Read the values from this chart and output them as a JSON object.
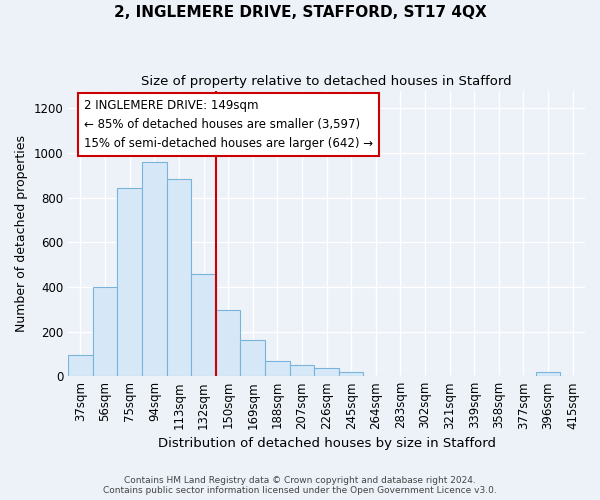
{
  "title": "2, INGLEMERE DRIVE, STAFFORD, ST17 4QX",
  "subtitle": "Size of property relative to detached houses in Stafford",
  "xlabel": "Distribution of detached houses by size in Stafford",
  "ylabel": "Number of detached properties",
  "categories": [
    "37sqm",
    "56sqm",
    "75sqm",
    "94sqm",
    "113sqm",
    "132sqm",
    "150sqm",
    "169sqm",
    "188sqm",
    "207sqm",
    "226sqm",
    "245sqm",
    "264sqm",
    "283sqm",
    "302sqm",
    "321sqm",
    "339sqm",
    "358sqm",
    "377sqm",
    "396sqm",
    "415sqm"
  ],
  "values": [
    95,
    400,
    845,
    960,
    885,
    460,
    295,
    160,
    70,
    52,
    35,
    20,
    0,
    0,
    0,
    0,
    0,
    0,
    0,
    18,
    0
  ],
  "bar_color": "#d6e8f7",
  "bar_edge_color": "#7ab3d9",
  "vline_position": 6,
  "vline_color": "#cc0000",
  "annotation_line1": "2 INGLEMERE DRIVE: 149sqm",
  "annotation_line2": "← 85% of detached houses are smaller (3,597)",
  "annotation_line3": "15% of semi-detached houses are larger (642) →",
  "footer": "Contains HM Land Registry data © Crown copyright and database right 2024.\nContains public sector information licensed under the Open Government Licence v3.0.",
  "ylim": [
    0,
    1280
  ],
  "yticks": [
    0,
    200,
    400,
    600,
    800,
    1000,
    1200
  ],
  "fig_bg_color": "#edf2f9",
  "plot_bg_color": "#edf2f9",
  "grid_color": "#ffffff",
  "title_fontsize": 11,
  "subtitle_fontsize": 9.5,
  "tick_fontsize": 8.5,
  "ylabel_fontsize": 9,
  "xlabel_fontsize": 9.5,
  "ann_fontsize": 8.5
}
